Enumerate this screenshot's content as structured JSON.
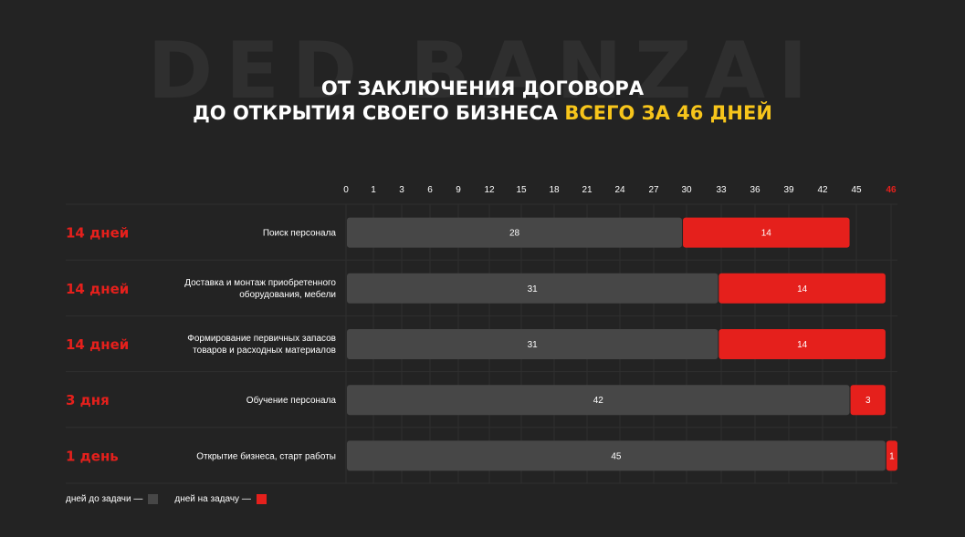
{
  "watermark": "DED BANZAI",
  "title": {
    "line1": "ОТ ЗАКЛЮЧЕНИЯ ДОГОВОРА",
    "line2_prefix": "ДО ОТКРЫТИЯ СВОЕГО БИЗНЕСА ",
    "line2_highlight": "ВСЕГО ЗА 46 ДНЕЙ"
  },
  "colors": {
    "background": "#232323",
    "before": "#474747",
    "during": "#e5201c",
    "accent_title": "#f7c51b"
  },
  "chart_data": {
    "type": "bar",
    "orientation": "horizontal",
    "stacked": true,
    "x_ticks": [
      "0",
      "1",
      "3",
      "6",
      "9",
      "12",
      "15",
      "18",
      "21",
      "24",
      "27",
      "30",
      "33",
      "36",
      "39",
      "42",
      "45",
      "46"
    ],
    "grid": true,
    "categories": [
      "Поиск персонала",
      "Доставка и монтаж приобретенного оборудования, мебели",
      "Формирование первичных запасов товаров и расходных материалов",
      "Обучение персонала",
      "Открытие бизнеса, старт работы"
    ],
    "durations": [
      "14 дней",
      "14 дней",
      "14 дней",
      "3 дня",
      "1 день"
    ],
    "series": [
      {
        "name": "дней до задачи",
        "values": [
          28,
          31,
          31,
          42,
          45
        ]
      },
      {
        "name": "дней на задачу",
        "values": [
          14,
          14,
          14,
          3,
          1
        ]
      }
    ],
    "legend_position": "bottom-left"
  },
  "legend": {
    "before_label": "дней до задачи  —",
    "during_label": "дней на задачу  —"
  }
}
